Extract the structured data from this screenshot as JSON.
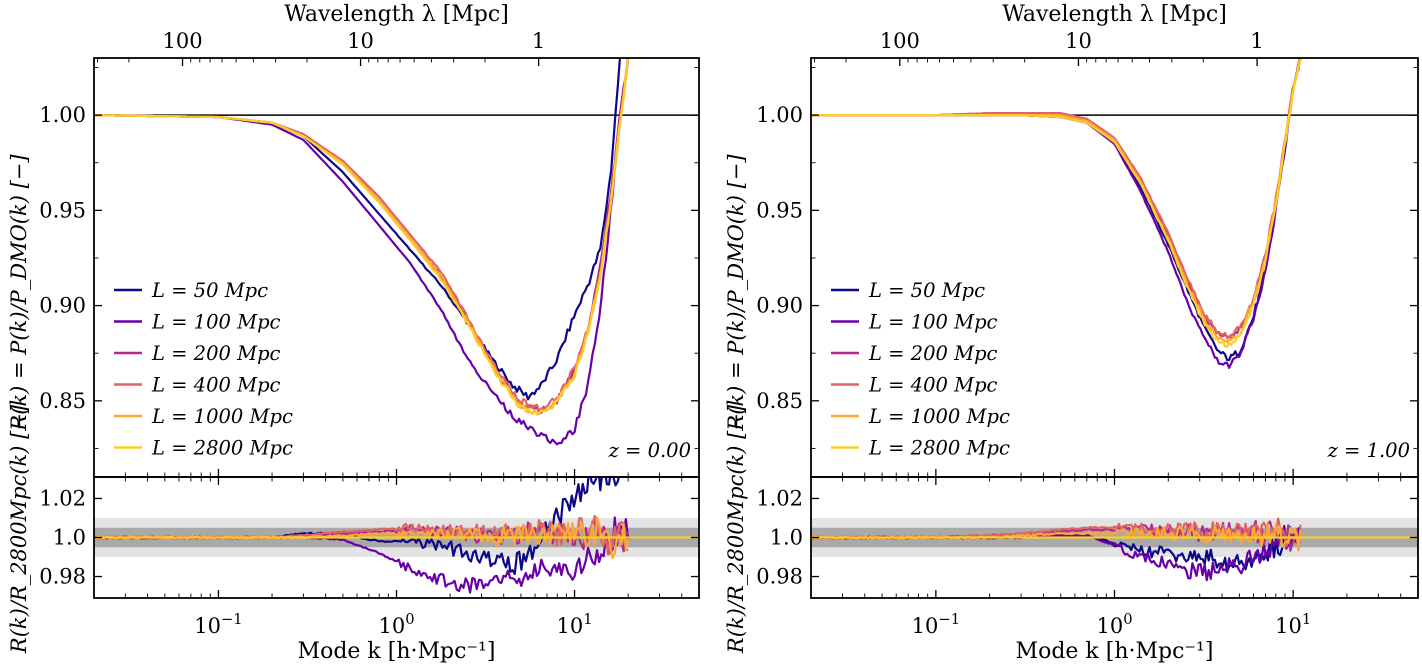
{
  "chart_data": [
    {
      "type": "line",
      "panel": "left",
      "redshift_label": "z = 0.00",
      "top_axis_label": "Wavelength λ [Mpc]",
      "top_ticks": [
        "100",
        "10",
        "1"
      ],
      "top_tick_values": [
        100,
        10,
        1
      ],
      "ylabel_main": "R(k) = P(k)/P_DMO(k) [−]",
      "ylabel_ratio": "R(k)/R_2800Mpc(k) [−]",
      "xlabel": "Mode k [h·Mpc⁻¹]",
      "xscale": "log",
      "xlim": [
        0.02,
        50
      ],
      "ylim_main": [
        0.81,
        1.03
      ],
      "ylim_ratio": [
        0.969,
        1.031
      ],
      "yticks_main": [
        "0.85",
        "0.90",
        "0.95",
        "1.00"
      ],
      "yticks_ratio": [
        "0.98",
        "1.0",
        "1.02"
      ],
      "xticks": [
        "10⁻¹",
        "10⁰",
        "10¹"
      ],
      "bands": {
        "inner": 0.005,
        "outer": 0.01
      },
      "legend": [
        "L = 50 Mpc",
        "L = 100 Mpc",
        "L = 200 Mpc",
        "L = 400 Mpc",
        "L = 1000 Mpc",
        "L = 2800 Mpc"
      ],
      "series": [
        {
          "name": "L = 50 Mpc",
          "color": "#0d0887",
          "x": [
            0.02,
            0.1,
            0.2,
            0.3,
            0.5,
            0.8,
            1.2,
            1.8,
            2.5,
            3.5,
            4.5,
            5.5,
            6.5,
            8,
            10,
            12,
            14,
            16,
            18
          ],
          "y": [
            1.0,
            0.999,
            0.996,
            0.989,
            0.97,
            0.948,
            0.929,
            0.91,
            0.891,
            0.871,
            0.858,
            0.852,
            0.858,
            0.872,
            0.895,
            0.912,
            0.93,
            0.97,
            1.03
          ],
          "ratio": [
            1.0,
            1.0,
            1.0,
            1.002,
            1.002,
            0.998,
            0.998,
            0.996,
            0.992,
            0.988,
            0.986,
            0.99,
            1.0,
            1.01,
            1.02,
            1.031,
            1.031,
            1.031,
            1.031
          ]
        },
        {
          "name": "L = 100 Mpc",
          "color": "#6a00a8",
          "x": [
            0.02,
            0.1,
            0.2,
            0.3,
            0.5,
            0.8,
            1.2,
            1.8,
            2.5,
            3.5,
            4.5,
            5.5,
            6.5,
            8,
            10,
            12,
            14,
            16,
            18,
            20
          ],
          "y": [
            1.0,
            0.999,
            0.995,
            0.987,
            0.965,
            0.942,
            0.922,
            0.897,
            0.872,
            0.854,
            0.842,
            0.836,
            0.832,
            0.828,
            0.835,
            0.86,
            0.9,
            0.95,
            1.0,
            1.03
          ],
          "ratio": [
            1.0,
            1.0,
            1.0,
            1.0,
            0.999,
            0.992,
            0.984,
            0.978,
            0.975,
            0.976,
            0.979,
            0.982,
            0.986,
            0.983,
            0.985,
            0.99,
            0.995,
            1.0,
            1.005,
            1.0
          ]
        },
        {
          "name": "L = 200 Mpc",
          "color": "#b12a90",
          "x": [
            0.02,
            0.1,
            0.2,
            0.3,
            0.5,
            0.8,
            1.2,
            1.8,
            2.5,
            3.5,
            4.5,
            5.5,
            6.5,
            8,
            10,
            12,
            14,
            16,
            18,
            20
          ],
          "y": [
            1.0,
            0.999,
            0.996,
            0.99,
            0.975,
            0.955,
            0.935,
            0.915,
            0.893,
            0.868,
            0.853,
            0.846,
            0.845,
            0.85,
            0.866,
            0.89,
            0.92,
            0.96,
            1.0,
            1.03
          ],
          "ratio": [
            1.0,
            1.0,
            1.0,
            1.001,
            1.002,
            1.003,
            1.004,
            1.003,
            1.002,
            1.0,
            1.001,
            1.003,
            1.002,
            1.0,
            1.003,
            1.0,
            1.005,
            0.995,
            1.0,
            1.0
          ]
        },
        {
          "name": "L = 400 Mpc",
          "color": "#e16462",
          "x": [
            0.02,
            0.1,
            0.2,
            0.3,
            0.5,
            0.8,
            1.2,
            1.8,
            2.5,
            3.5,
            4.5,
            5.5,
            6.5,
            8,
            10,
            12,
            14,
            16,
            18,
            20
          ],
          "y": [
            1.0,
            0.999,
            0.996,
            0.99,
            0.976,
            0.957,
            0.937,
            0.917,
            0.894,
            0.869,
            0.854,
            0.847,
            0.846,
            0.851,
            0.867,
            0.889,
            0.918,
            0.955,
            0.995,
            1.03
          ],
          "ratio": [
            1.0,
            1.0,
            1.0,
            1.001,
            1.003,
            1.004,
            1.005,
            1.004,
            1.003,
            1.002,
            1.003,
            1.004,
            1.003,
            1.002,
            1.004,
            1.002,
            1.006,
            0.996,
            1.0,
            1.0
          ]
        },
        {
          "name": "L = 1000 Mpc",
          "color": "#fca636",
          "x": [
            0.02,
            0.1,
            0.2,
            0.3,
            0.5,
            0.8,
            1.2,
            1.8,
            2.5,
            3.5,
            4.5,
            5.5,
            6.5,
            8,
            10,
            12,
            14,
            16,
            18,
            20
          ],
          "y": [
            1.0,
            0.999,
            0.996,
            0.989,
            0.975,
            0.955,
            0.935,
            0.915,
            0.892,
            0.867,
            0.852,
            0.845,
            0.844,
            0.85,
            0.865,
            0.888,
            0.917,
            0.955,
            0.995,
            1.03
          ],
          "ratio": [
            1.0,
            1.0,
            1.0,
            1.0,
            1.001,
            1.002,
            1.002,
            1.002,
            1.001,
            1.0,
            1.001,
            1.002,
            1.001,
            1.0,
            1.002,
            1.0,
            1.004,
            0.997,
            1.0,
            1.0
          ]
        },
        {
          "name": "L = 2800 Mpc",
          "color": "#fcce25",
          "x": [
            0.02,
            0.1,
            0.2,
            0.3,
            0.5,
            0.8,
            1.2,
            1.8,
            2.5,
            3.5,
            4.5,
            5.5,
            6.5,
            8,
            10,
            12,
            14,
            16,
            18,
            20
          ],
          "y": [
            1.0,
            0.999,
            0.996,
            0.989,
            0.974,
            0.954,
            0.934,
            0.913,
            0.891,
            0.866,
            0.851,
            0.844,
            0.843,
            0.849,
            0.864,
            0.887,
            0.916,
            0.955,
            0.995,
            1.03
          ],
          "ratio": [
            1.0,
            1.0,
            1.0,
            1.0,
            1.0,
            1.0,
            1.0,
            1.0,
            1.0,
            1.0,
            1.0,
            1.0,
            1.0,
            1.0,
            1.0,
            1.0,
            1.0,
            1.0,
            1.0,
            1.0
          ]
        }
      ]
    },
    {
      "type": "line",
      "panel": "right",
      "redshift_label": "z = 1.00",
      "top_axis_label": "Wavelength λ [Mpc]",
      "top_ticks": [
        "100",
        "10",
        "1"
      ],
      "top_tick_values": [
        100,
        10,
        1
      ],
      "ylabel_main": "R(k) = P(k)/P_DMO(k) [−]",
      "ylabel_ratio": "R(k)/R_2800Mpc(k) [−]",
      "xlabel": "Mode k [h·Mpc⁻¹]",
      "xscale": "log",
      "xlim": [
        0.02,
        50
      ],
      "ylim_main": [
        0.81,
        1.03
      ],
      "ylim_ratio": [
        0.969,
        1.031
      ],
      "yticks_main": [
        "0.85",
        "0.90",
        "0.95",
        "1.00"
      ],
      "yticks_ratio": [
        "0.98",
        "1.0",
        "1.02"
      ],
      "xticks": [
        "10⁻¹",
        "10⁰",
        "10¹"
      ],
      "bands": {
        "inner": 0.005,
        "outer": 0.01
      },
      "legend": [
        "L = 50 Mpc",
        "L = 100 Mpc",
        "L = 200 Mpc",
        "L = 400 Mpc",
        "L = 1000 Mpc",
        "L = 2800 Mpc"
      ],
      "series": [
        {
          "name": "L = 50 Mpc",
          "color": "#0d0887",
          "x": [
            0.02,
            0.1,
            0.2,
            0.3,
            0.5,
            0.7,
            1.0,
            1.4,
            2.0,
            2.6,
            3.2,
            3.8,
            4.4,
            5.0,
            6.0,
            7.0,
            8.0,
            9.0,
            10.0,
            11.0
          ],
          "y": [
            1.0,
            1.0,
            1.0,
            1.0,
            0.999,
            0.996,
            0.985,
            0.962,
            0.932,
            0.907,
            0.888,
            0.876,
            0.872,
            0.876,
            0.894,
            0.92,
            0.952,
            0.985,
            1.015,
            1.03
          ],
          "ratio": [
            1.0,
            1.0,
            1.0,
            1.0,
            1.001,
            1.001,
            0.997,
            0.993,
            0.992,
            0.99,
            0.99,
            0.988,
            0.986,
            0.987,
            0.99,
            0.993,
            0.995,
            1.0,
            1.0,
            1.0
          ]
        },
        {
          "name": "L = 100 Mpc",
          "color": "#6a00a8",
          "x": [
            0.02,
            0.1,
            0.2,
            0.3,
            0.5,
            0.7,
            1.0,
            1.4,
            2.0,
            2.6,
            3.2,
            3.8,
            4.4,
            5.0,
            6.0,
            7.0,
            8.0,
            9.0,
            10.0,
            11.0
          ],
          "y": [
            1.0,
            1.0,
            1.0,
            1.0,
            0.999,
            0.996,
            0.985,
            0.96,
            0.928,
            0.9,
            0.882,
            0.871,
            0.869,
            0.874,
            0.893,
            0.918,
            0.95,
            0.983,
            1.013,
            1.03
          ],
          "ratio": [
            1.0,
            1.0,
            1.0,
            1.0,
            1.001,
            1.001,
            0.996,
            0.99,
            0.986,
            0.983,
            0.982,
            0.983,
            0.985,
            0.986,
            0.99,
            0.994,
            0.997,
            1.0,
            1.0,
            1.0
          ]
        },
        {
          "name": "L = 200 Mpc",
          "color": "#b12a90",
          "x": [
            0.02,
            0.1,
            0.2,
            0.3,
            0.5,
            0.7,
            1.0,
            1.4,
            2.0,
            2.6,
            3.2,
            3.8,
            4.4,
            5.0,
            6.0,
            7.0,
            8.0,
            9.0,
            10.0,
            11.0
          ],
          "y": [
            1.0,
            1.0,
            1.001,
            1.001,
            1.001,
            0.998,
            0.988,
            0.966,
            0.937,
            0.912,
            0.894,
            0.885,
            0.883,
            0.887,
            0.903,
            0.926,
            0.955,
            0.986,
            1.014,
            1.03
          ],
          "ratio": [
            1.0,
            1.0,
            1.001,
            1.002,
            1.003,
            1.004,
            1.004,
            1.004,
            1.003,
            1.003,
            1.002,
            1.003,
            1.003,
            1.002,
            1.003,
            1.002,
            1.004,
            1.0,
            1.0,
            1.0
          ]
        },
        {
          "name": "L = 400 Mpc",
          "color": "#e16462",
          "x": [
            0.02,
            0.1,
            0.2,
            0.3,
            0.5,
            0.7,
            1.0,
            1.4,
            2.0,
            2.6,
            3.2,
            3.8,
            4.4,
            5.0,
            6.0,
            7.0,
            8.0,
            9.0,
            10.0,
            11.0
          ],
          "y": [
            1.0,
            1.0,
            1.001,
            1.001,
            1.001,
            0.998,
            0.988,
            0.967,
            0.938,
            0.913,
            0.895,
            0.886,
            0.884,
            0.888,
            0.904,
            0.927,
            0.956,
            0.987,
            1.014,
            1.03
          ],
          "ratio": [
            1.0,
            1.0,
            1.001,
            1.002,
            1.004,
            1.005,
            1.005,
            1.005,
            1.004,
            1.004,
            1.003,
            1.004,
            1.004,
            1.003,
            1.004,
            1.003,
            1.005,
            1.0,
            1.0,
            1.0
          ]
        },
        {
          "name": "L = 1000 Mpc",
          "color": "#fca636",
          "x": [
            0.02,
            0.1,
            0.2,
            0.3,
            0.5,
            0.7,
            1.0,
            1.4,
            2.0,
            2.6,
            3.2,
            3.8,
            4.4,
            5.0,
            6.0,
            7.0,
            8.0,
            9.0,
            10.0,
            11.0
          ],
          "y": [
            1.0,
            1.0,
            1.0,
            1.0,
            1.0,
            0.997,
            0.987,
            0.965,
            0.935,
            0.91,
            0.892,
            0.883,
            0.881,
            0.885,
            0.902,
            0.925,
            0.954,
            0.986,
            1.014,
            1.03
          ],
          "ratio": [
            1.0,
            1.0,
            1.0,
            1.001,
            1.002,
            1.002,
            1.002,
            1.002,
            1.002,
            1.002,
            1.001,
            1.002,
            1.002,
            1.001,
            1.002,
            1.001,
            1.003,
            1.0,
            1.0,
            1.0
          ]
        },
        {
          "name": "L = 2800 Mpc",
          "color": "#fcce25",
          "x": [
            0.02,
            0.1,
            0.2,
            0.3,
            0.5,
            0.7,
            1.0,
            1.4,
            2.0,
            2.6,
            3.2,
            3.8,
            4.4,
            5.0,
            6.0,
            7.0,
            8.0,
            9.0,
            10.0,
            11.0
          ],
          "y": [
            1.0,
            1.0,
            1.0,
            1.0,
            0.999,
            0.996,
            0.986,
            0.964,
            0.934,
            0.908,
            0.89,
            0.881,
            0.879,
            0.883,
            0.9,
            0.924,
            0.953,
            0.985,
            1.013,
            1.03
          ],
          "ratio": [
            1.0,
            1.0,
            1.0,
            1.0,
            1.0,
            1.0,
            1.0,
            1.0,
            1.0,
            1.0,
            1.0,
            1.0,
            1.0,
            1.0,
            1.0,
            1.0,
            1.0,
            1.0,
            1.0,
            1.0
          ]
        }
      ]
    }
  ]
}
